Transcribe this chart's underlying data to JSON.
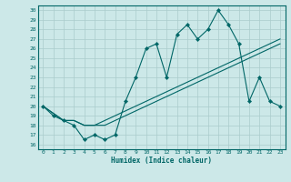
{
  "xlabel": "Humidex (Indice chaleur)",
  "background_color": "#cce8e8",
  "grid_color": "#aacccc",
  "line_color": "#006666",
  "xlim": [
    -0.5,
    23.5
  ],
  "ylim": [
    15.5,
    30.5
  ],
  "yticks": [
    16,
    17,
    18,
    19,
    20,
    21,
    22,
    23,
    24,
    25,
    26,
    27,
    28,
    29,
    30
  ],
  "xticks": [
    0,
    1,
    2,
    3,
    4,
    5,
    6,
    7,
    8,
    9,
    10,
    11,
    12,
    13,
    14,
    15,
    16,
    17,
    18,
    19,
    20,
    21,
    22,
    23
  ],
  "series1_x": [
    0,
    1,
    2,
    3,
    4,
    5,
    6,
    7,
    8,
    9,
    10,
    11,
    12,
    13,
    14,
    15,
    16,
    17,
    18,
    19,
    20,
    21,
    22,
    23
  ],
  "series1_y": [
    20.0,
    19.0,
    18.5,
    18.0,
    16.5,
    17.0,
    16.5,
    17.0,
    20.5,
    23.0,
    26.0,
    26.5,
    23.0,
    27.5,
    28.5,
    27.0,
    28.0,
    30.0,
    28.5,
    26.5,
    20.5,
    23.0,
    20.5,
    20.0
  ],
  "series2_x": [
    0,
    2,
    3,
    4,
    5,
    6,
    7,
    8,
    9,
    10,
    11,
    12,
    13,
    14,
    15,
    16,
    17,
    18,
    19,
    20,
    21,
    22,
    23
  ],
  "series2_y": [
    20.0,
    18.5,
    18.5,
    18.0,
    18.0,
    18.0,
    18.5,
    19.0,
    19.5,
    20.0,
    20.5,
    21.0,
    21.5,
    22.0,
    22.5,
    23.0,
    23.5,
    24.0,
    24.5,
    25.0,
    25.5,
    26.0,
    26.5
  ],
  "series3_x": [
    0,
    2,
    3,
    4,
    5,
    6,
    7,
    8,
    9,
    10,
    11,
    12,
    13,
    14,
    15,
    16,
    17,
    18,
    19,
    20,
    21,
    22,
    23
  ],
  "series3_y": [
    20.0,
    18.5,
    18.5,
    18.0,
    18.0,
    18.5,
    19.0,
    19.5,
    20.0,
    20.5,
    21.0,
    21.5,
    22.0,
    22.5,
    23.0,
    23.5,
    24.0,
    24.5,
    25.0,
    25.5,
    26.0,
    26.5,
    27.0
  ]
}
